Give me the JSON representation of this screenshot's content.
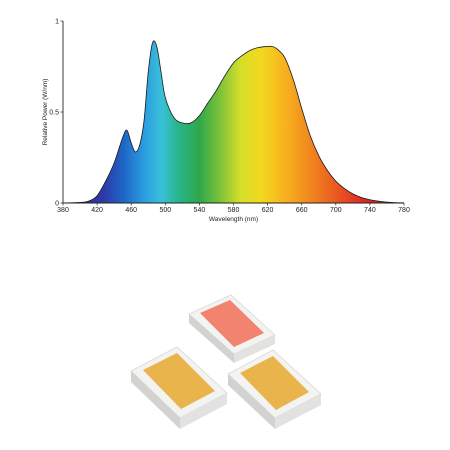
{
  "chart_data": {
    "type": "area",
    "xlabel": "Wavelength (nm)",
    "ylabel": "Relative Power  (W/nm)",
    "xlim": [
      380,
      780
    ],
    "ylim": [
      0,
      1
    ],
    "x_ticks": [
      "380",
      "420",
      "460",
      "500",
      "540",
      "580",
      "620",
      "660",
      "700",
      "740",
      "780"
    ],
    "y_ticks": [
      "0",
      "0.5",
      "1"
    ],
    "grid": false,
    "x": [
      380,
      400,
      410,
      420,
      430,
      440,
      450,
      455,
      460,
      465,
      470,
      475,
      480,
      485,
      490,
      495,
      500,
      510,
      520,
      530,
      540,
      550,
      560,
      570,
      580,
      590,
      600,
      610,
      620,
      625,
      630,
      640,
      650,
      660,
      670,
      680,
      690,
      700,
      710,
      720,
      730,
      740,
      750,
      760,
      770,
      780
    ],
    "y": [
      0,
      0.003,
      0.01,
      0.04,
      0.12,
      0.22,
      0.36,
      0.4,
      0.33,
      0.28,
      0.32,
      0.45,
      0.72,
      0.88,
      0.86,
      0.72,
      0.58,
      0.47,
      0.44,
      0.44,
      0.48,
      0.55,
      0.62,
      0.7,
      0.77,
      0.81,
      0.84,
      0.855,
      0.86,
      0.86,
      0.85,
      0.8,
      0.68,
      0.52,
      0.37,
      0.26,
      0.18,
      0.12,
      0.08,
      0.05,
      0.03,
      0.018,
      0.01,
      0.005,
      0.002,
      0.001
    ],
    "fill": "spectral gradient (blue to red by wavelength)"
  },
  "colors": {
    "led_body": "#f1f1ef",
    "led_warm": "#e9b44c",
    "led_red": "#f2836f",
    "axis": "#222222"
  },
  "leds": [
    "red-led-chip",
    "warm-white-led-chip",
    "warm-white-led-chip"
  ]
}
